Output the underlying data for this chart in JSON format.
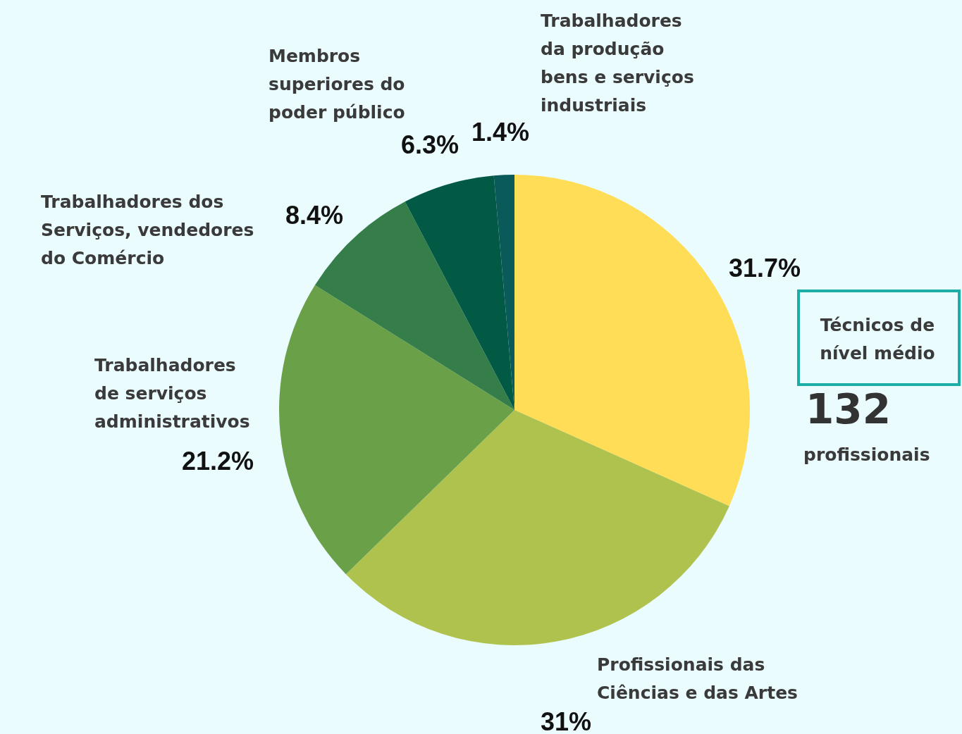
{
  "chart_data": {
    "type": "pie",
    "categories": [
      "Técnicos de nível médio",
      "Profissionais das Ciências e das Artes",
      "Trabalhadores de serviços administrativos",
      "Trabalhadores dos Serviços, vendedores do Comércio",
      "Membros superiores do poder público",
      "Trabalhadores da produção bens e serviços industriais"
    ],
    "values": [
      31.7,
      31,
      21.2,
      8.4,
      6.3,
      1.4
    ],
    "value_labels": [
      "31.7%",
      "31%",
      "21.2%",
      "8.4%",
      "6.3%",
      "1.4%"
    ],
    "colors": [
      "#ffdd57",
      "#b0c24e",
      "#6aa048",
      "#357e4a",
      "#025a45",
      "#0a5a5a"
    ],
    "annotations": [
      "132",
      "profissionais"
    ]
  }
}
